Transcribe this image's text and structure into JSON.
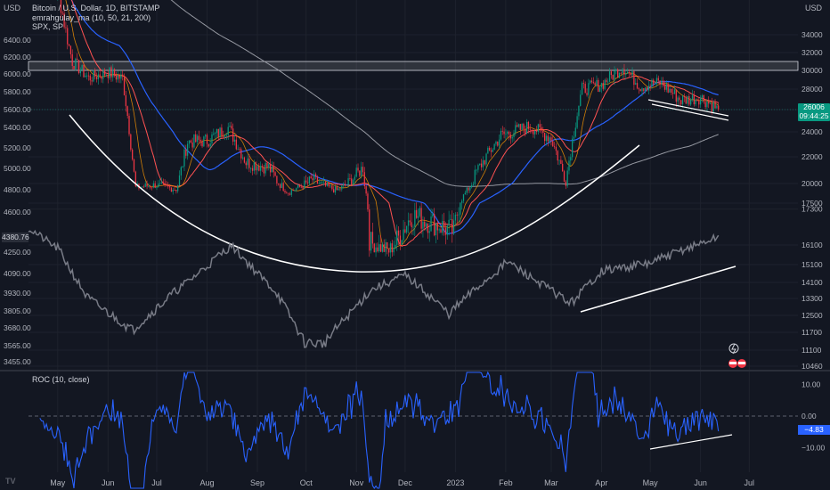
{
  "legend": {
    "symbol": "Bitcoin / U.S. Dollar, 1D, BITSTAMP",
    "indicator": "emrahgulay_ma (10, 50, 21, 200)",
    "compare": "SPX, SP"
  },
  "roc_legend": "ROC (10, close)",
  "currency_left": "USD",
  "currency_right": "USD",
  "price_tag": {
    "value": "26006",
    "countdown": "09:44:25"
  },
  "spx_tag": "4380.76",
  "roc_tag": "−4.83",
  "logo_text": "TV",
  "colors": {
    "background": "#131722",
    "grid": "#1e222d",
    "up": "#089981",
    "down": "#f23645",
    "ma_fast": "#ff5252",
    "ma_mid": "#2962ff",
    "ma_slow": "#9598a1",
    "spx": "#787b86",
    "roc": "#2962ff",
    "annotation": "#ffffff"
  },
  "chart_data": [
    {
      "type": "line",
      "title": "Bitcoin / U.S. Dollar, 1D, BITSTAMP",
      "x_ticks": [
        "May",
        "Jun",
        "Jul",
        "Aug",
        "Sep",
        "Oct",
        "Nov",
        "Dec",
        "2023",
        "Feb",
        "Mar",
        "Apr",
        "May",
        "Jun",
        "Jul"
      ],
      "left_axis_ticks": [
        "6400.00",
        "6200.00",
        "6000.00",
        "5800.00",
        "5600.00",
        "5400.00",
        "5200.00",
        "5000.00",
        "4800.00",
        "4600.00",
        "4250.00",
        "4090.00",
        "3930.00",
        "3805.00",
        "3680.00",
        "3565.00",
        "3455.00"
      ],
      "right_axis_ticks": [
        "34000",
        "32000",
        "30000",
        "28000",
        "26000",
        "24000",
        "22000",
        "20000",
        "17500",
        "17300",
        "16100",
        "15100",
        "14100",
        "13300",
        "12500",
        "11700",
        "11100",
        "10460"
      ],
      "btc_close": [
        {
          "x": "2022-05-01",
          "y": 38500
        },
        {
          "x": "2022-05-10",
          "y": 31000
        },
        {
          "x": "2022-05-20",
          "y": 29200
        },
        {
          "x": "2022-06-01",
          "y": 29800
        },
        {
          "x": "2022-06-10",
          "y": 29100
        },
        {
          "x": "2022-06-18",
          "y": 19500
        },
        {
          "x": "2022-06-30",
          "y": 19800
        },
        {
          "x": "2022-07-13",
          "y": 19300
        },
        {
          "x": "2022-07-20",
          "y": 23200
        },
        {
          "x": "2022-08-01",
          "y": 23300
        },
        {
          "x": "2022-08-14",
          "y": 24400
        },
        {
          "x": "2022-08-25",
          "y": 21600
        },
        {
          "x": "2022-09-08",
          "y": 21200
        },
        {
          "x": "2022-09-20",
          "y": 18900
        },
        {
          "x": "2022-10-05",
          "y": 20300
        },
        {
          "x": "2022-10-20",
          "y": 19100
        },
        {
          "x": "2022-11-05",
          "y": 21200
        },
        {
          "x": "2022-11-09",
          "y": 16200
        },
        {
          "x": "2022-11-21",
          "y": 15800
        },
        {
          "x": "2022-12-05",
          "y": 17100
        },
        {
          "x": "2022-12-20",
          "y": 16800
        },
        {
          "x": "2022-12-31",
          "y": 16550
        },
        {
          "x": "2023-01-14",
          "y": 20900
        },
        {
          "x": "2023-01-29",
          "y": 23700
        },
        {
          "x": "2023-02-16",
          "y": 24500
        },
        {
          "x": "2023-03-01",
          "y": 23500
        },
        {
          "x": "2023-03-10",
          "y": 20200
        },
        {
          "x": "2023-03-20",
          "y": 28000
        },
        {
          "x": "2023-04-01",
          "y": 28500
        },
        {
          "x": "2023-04-14",
          "y": 30400
        },
        {
          "x": "2023-04-25",
          "y": 28300
        },
        {
          "x": "2023-05-07",
          "y": 28700
        },
        {
          "x": "2023-05-20",
          "y": 26900
        },
        {
          "x": "2023-06-01",
          "y": 27200
        },
        {
          "x": "2023-06-12",
          "y": 26006
        }
      ],
      "spx_close": [
        {
          "x": "2022-05-01",
          "y": 4287
        },
        {
          "x": "2022-05-19",
          "y": 3900
        },
        {
          "x": "2022-06-16",
          "y": 3666
        },
        {
          "x": "2022-07-01",
          "y": 3825
        },
        {
          "x": "2022-08-16",
          "y": 4305
        },
        {
          "x": "2022-09-13",
          "y": 3932
        },
        {
          "x": "2022-09-30",
          "y": 3585
        },
        {
          "x": "2022-10-12",
          "y": 3577
        },
        {
          "x": "2022-11-10",
          "y": 3956
        },
        {
          "x": "2022-12-01",
          "y": 4076
        },
        {
          "x": "2022-12-28",
          "y": 3783
        },
        {
          "x": "2023-02-02",
          "y": 4179
        },
        {
          "x": "2023-03-13",
          "y": 3855
        },
        {
          "x": "2023-04-01",
          "y": 4109
        },
        {
          "x": "2023-05-01",
          "y": 4167
        },
        {
          "x": "2023-06-12",
          "y": 4380.76
        }
      ],
      "roc_close": [
        {
          "x": "2022-06-18",
          "y": -30
        },
        {
          "x": "2022-07-20",
          "y": 20
        },
        {
          "x": "2022-11-09",
          "y": -28
        },
        {
          "x": "2023-01-20",
          "y": 35
        },
        {
          "x": "2023-03-10",
          "y": -16
        },
        {
          "x": "2023-03-22",
          "y": 28
        },
        {
          "x": "2023-05-12",
          "y": -8
        },
        {
          "x": "2023-06-12",
          "y": -4.83
        }
      ],
      "roc_ticks": [
        "10.00",
        "0.00",
        "−10.00"
      ]
    }
  ]
}
